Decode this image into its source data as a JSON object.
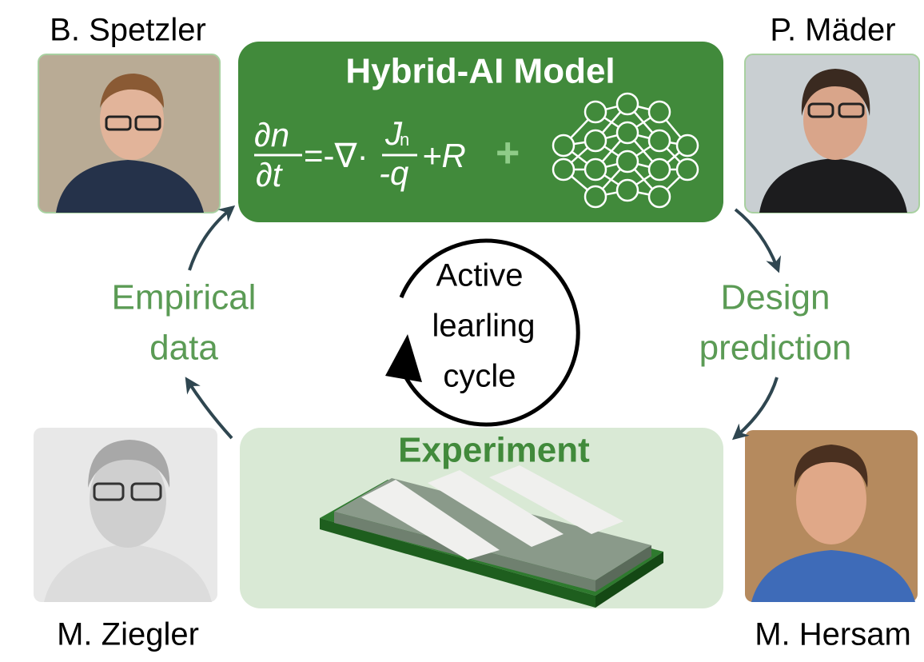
{
  "people": [
    {
      "name": "B. Spetzler"
    },
    {
      "name": "P. Mäder"
    },
    {
      "name": "M. Ziegler"
    },
    {
      "name": "M. Hersam"
    }
  ],
  "model": {
    "title": "Hybrid-AI Model",
    "equation": {
      "num": "∂n",
      "den": "∂t",
      "eq": "=-∇·",
      "frac_num": "J",
      "frac_sub": "n",
      "frac_den": "-q",
      "rest": "+R",
      "plus": "+"
    }
  },
  "experiment": {
    "title": "Experiment"
  },
  "left_label": [
    "Empirical",
    "data"
  ],
  "right_label": [
    "Design",
    "prediction"
  ],
  "cycle": [
    "Active",
    "learling",
    "cycle"
  ]
}
